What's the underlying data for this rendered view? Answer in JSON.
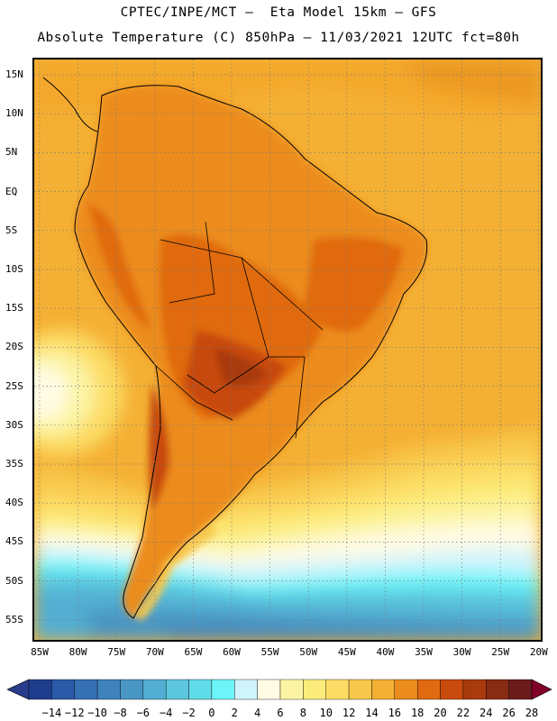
{
  "header": {
    "line1": "CPTEC/INPE/MCT –  Eta Model 15km – GFS",
    "line2": "Absolute Temperature (C) 850hPa – 11/03/2021 12UTC fct=80h"
  },
  "map": {
    "lat_labels": [
      "15N",
      "10N",
      "5N",
      "EQ",
      "5S",
      "10S",
      "15S",
      "20S",
      "25S",
      "30S",
      "35S",
      "40S",
      "45S",
      "50S",
      "55S"
    ],
    "lon_labels": [
      "85W",
      "80W",
      "75W",
      "70W",
      "65W",
      "60W",
      "55W",
      "50W",
      "45W",
      "40W",
      "35W",
      "30W",
      "25W",
      "20W"
    ],
    "grid": "dotted",
    "domain": {
      "lon": [
        -85,
        -20
      ],
      "lat": [
        -57,
        17
      ]
    }
  },
  "colorbar": {
    "labels": [
      "-14",
      "-12",
      "-10",
      "-8",
      "-6",
      "-4",
      "-2",
      "0",
      "2",
      "4",
      "6",
      "8",
      "10",
      "12",
      "14",
      "16",
      "18",
      "20",
      "22",
      "24",
      "26",
      "28"
    ],
    "colors": [
      "#1e3c8c",
      "#2a5aa8",
      "#3570b4",
      "#3f82bc",
      "#4896c4",
      "#52aed2",
      "#5cc6de",
      "#60dce8",
      "#6cf4f8",
      "#d0f4fc",
      "#fffbe4",
      "#fcf4a4",
      "#fcec7c",
      "#fcdc64",
      "#f8c84c",
      "#f4b034",
      "#ec8c1c",
      "#e06a10",
      "#c84a0c",
      "#a83a0c",
      "#882c14",
      "#6c1c1c"
    ]
  }
}
